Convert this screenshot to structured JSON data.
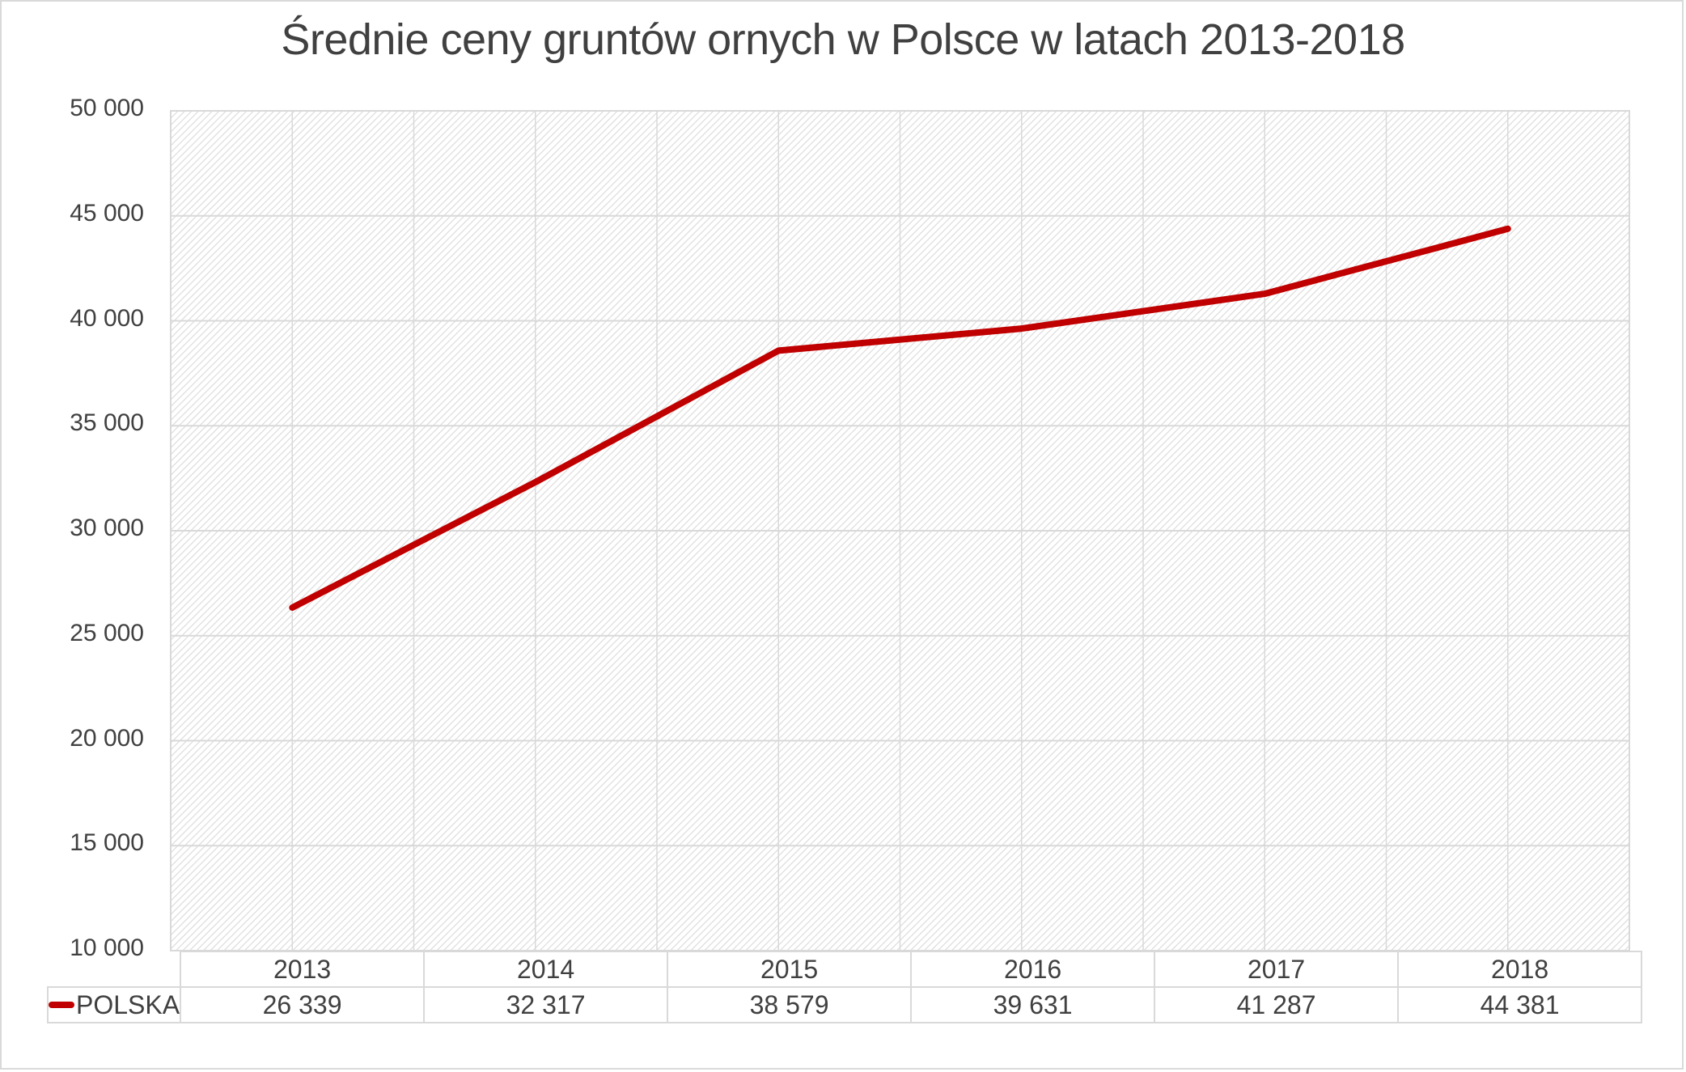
{
  "title": "Średnie ceny gruntów ornych w Polsce w latach 2013-2018",
  "colors": {
    "line": "#C00000",
    "grid": "#d9d9d9",
    "text": "#404040",
    "hatch": "#d9d9d9"
  },
  "y_axis": {
    "ticks": [
      "50 000",
      "45 000",
      "40 000",
      "35 000",
      "30 000",
      "25 000",
      "20 000",
      "15 000",
      "10 000"
    ]
  },
  "table": {
    "categories": [
      "2013",
      "2014",
      "2015",
      "2016",
      "2017",
      "2018"
    ],
    "series_label": "POLSKA",
    "values": [
      "26 339",
      "32 317",
      "38 579",
      "39 631",
      "41 287",
      "44 381"
    ]
  },
  "chart_data": {
    "type": "line",
    "title": "Średnie ceny gruntów ornych w Polsce w latach 2013-2018",
    "xlabel": "",
    "ylabel": "",
    "categories": [
      "2013",
      "2014",
      "2015",
      "2016",
      "2017",
      "2018"
    ],
    "series": [
      {
        "name": "POLSKA",
        "color": "#C00000",
        "values": [
          26339,
          32317,
          38579,
          39631,
          41287,
          44381
        ]
      }
    ],
    "ylim": [
      10000,
      50000
    ],
    "y_tick_step": 5000,
    "grid": true,
    "legend_position": "data-table",
    "data_table": true
  }
}
